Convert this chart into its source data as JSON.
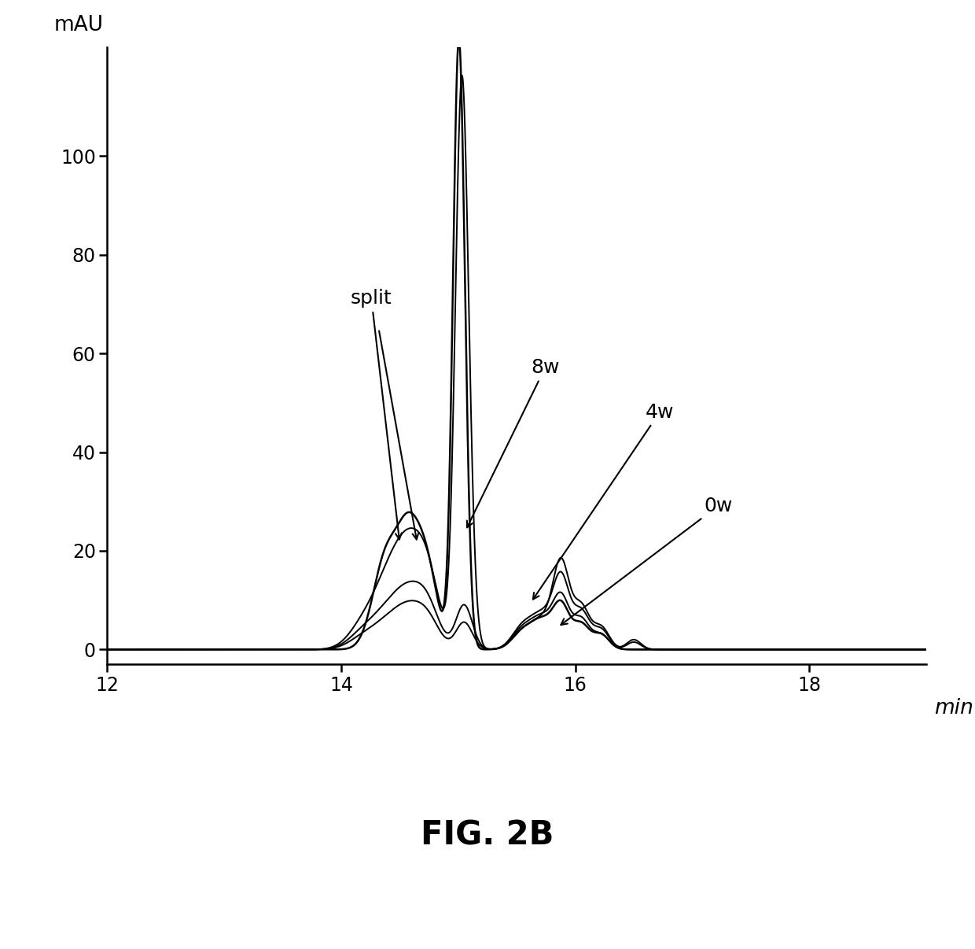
{
  "title": "FIG. 2B",
  "xlabel": "min",
  "ylabel": "mAU",
  "xlim": [
    12,
    19.0
  ],
  "ylim": [
    -3,
    122
  ],
  "xticks": [
    12,
    14,
    16,
    18
  ],
  "yticks": [
    0,
    20,
    40,
    60,
    80,
    100
  ],
  "background_color": "#ffffff",
  "line_color": "#000000",
  "linewidth": 1.4
}
